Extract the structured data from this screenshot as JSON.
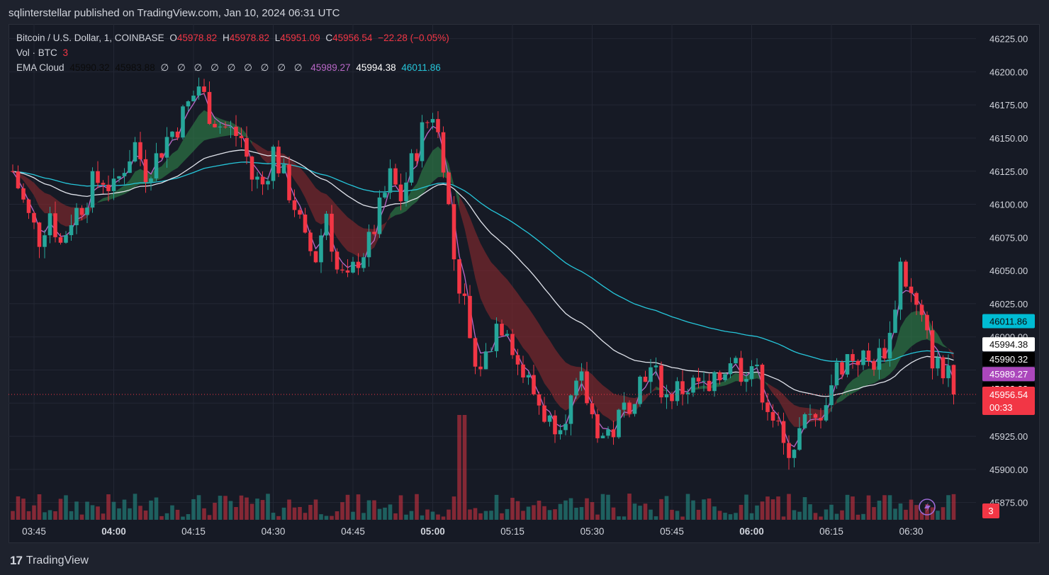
{
  "publish_line": "sqlinterstellar published on TradingView.com, Jan 10, 2024 06:31 UTC",
  "legend": {
    "symbol": "Bitcoin / U.S. Dollar, 1, COINBASE",
    "o_label": "O",
    "o_value": "45978.82",
    "h_label": "H",
    "h_value": "45978.82",
    "l_label": "L",
    "l_value": "45951.09",
    "c_label": "C",
    "c_value": "45956.54",
    "change": "−22.28 (−0.05%)",
    "vol_label": "Vol · BTC",
    "vol_value": "3",
    "ema_label": "EMA Cloud",
    "ema_v1": "45990.32",
    "ema_v2": "45983.88",
    "ema_empty": [
      "∅",
      "∅",
      "∅",
      "∅",
      "∅",
      "∅",
      "∅",
      "∅",
      "∅"
    ],
    "ema_v3": "45989.27",
    "ema_v4": "45994.38",
    "ema_v5": "46011.86"
  },
  "brand": "TradingView",
  "colors": {
    "up": "#26a69a",
    "down": "#f23645",
    "white_ema": "#e0e3eb",
    "cyan_ema": "#26c6da",
    "violet_ema": "#ba68c8"
  },
  "chart_data": {
    "type": "candlestick",
    "title": "Bitcoin / U.S. Dollar, 1, COINBASE",
    "interval": "1 minute",
    "y_range": [
      45862,
      46236
    ],
    "y_ticks": [
      "46225.00",
      "46200.00",
      "46175.00",
      "46150.00",
      "46125.00",
      "46100.00",
      "46075.00",
      "46050.00",
      "46025.00",
      "46000.00",
      "45975.00",
      "45950.00",
      "45925.00",
      "45900.00",
      "45875.00"
    ],
    "y_tick_values": [
      46225,
      46200,
      46175,
      46150,
      46125,
      46100,
      46075,
      46050,
      46025,
      46000,
      45975,
      45950,
      45925,
      45900,
      45875
    ],
    "x_ticks": [
      {
        "label": "03:45",
        "minute": 0,
        "bold": false
      },
      {
        "label": "04:00",
        "minute": 15,
        "bold": true
      },
      {
        "label": "04:15",
        "minute": 30,
        "bold": false
      },
      {
        "label": "04:30",
        "minute": 45,
        "bold": false
      },
      {
        "label": "04:45",
        "minute": 60,
        "bold": false
      },
      {
        "label": "05:00",
        "minute": 75,
        "bold": true
      },
      {
        "label": "05:15",
        "minute": 90,
        "bold": false
      },
      {
        "label": "05:30",
        "minute": 105,
        "bold": false
      },
      {
        "label": "05:45",
        "minute": 120,
        "bold": false
      },
      {
        "label": "06:00",
        "minute": 135,
        "bold": true
      },
      {
        "label": "06:15",
        "minute": 150,
        "bold": false
      },
      {
        "label": "06:30",
        "minute": 165,
        "bold": false
      }
    ],
    "start_minute": -4,
    "price_anchors": [
      [
        -4,
        46125
      ],
      [
        -1,
        46090
      ],
      [
        1,
        46075
      ],
      [
        3,
        46095
      ],
      [
        5,
        46070
      ],
      [
        7,
        46090
      ],
      [
        9,
        46100
      ],
      [
        11,
        46115
      ],
      [
        13,
        46120
      ],
      [
        15,
        46110
      ],
      [
        17,
        46130
      ],
      [
        19,
        46145
      ],
      [
        21,
        46125
      ],
      [
        23,
        46135
      ],
      [
        25,
        46150
      ],
      [
        27,
        46160
      ],
      [
        29,
        46175
      ],
      [
        31,
        46190
      ],
      [
        33,
        46170
      ],
      [
        35,
        46160
      ],
      [
        37,
        46155
      ],
      [
        39,
        46150
      ],
      [
        41,
        46120
      ],
      [
        43,
        46115
      ],
      [
        45,
        46140
      ],
      [
        47,
        46120
      ],
      [
        49,
        46100
      ],
      [
        51,
        46070
      ],
      [
        53,
        46060
      ],
      [
        55,
        46095
      ],
      [
        57,
        46050
      ],
      [
        59,
        46040
      ],
      [
        61,
        46060
      ],
      [
        63,
        46070
      ],
      [
        65,
        46095
      ],
      [
        67,
        46120
      ],
      [
        69,
        46105
      ],
      [
        71,
        46130
      ],
      [
        73,
        46155
      ],
      [
        75,
        46170
      ],
      [
        77,
        46135
      ],
      [
        79,
        46060
      ],
      [
        81,
        46020
      ],
      [
        83,
        45975
      ],
      [
        85,
        45985
      ],
      [
        87,
        46010
      ],
      [
        89,
        46010
      ],
      [
        91,
        45980
      ],
      [
        93,
        45965
      ],
      [
        95,
        45950
      ],
      [
        97,
        45935
      ],
      [
        99,
        45940
      ],
      [
        101,
        45950
      ],
      [
        103,
        45965
      ],
      [
        105,
        45940
      ],
      [
        107,
        45925
      ],
      [
        109,
        45930
      ],
      [
        111,
        45945
      ],
      [
        113,
        45960
      ],
      [
        115,
        45975
      ],
      [
        117,
        45970
      ],
      [
        119,
        45955
      ],
      [
        121,
        45960
      ],
      [
        123,
        45962
      ],
      [
        125,
        45965
      ],
      [
        127,
        45955
      ],
      [
        129,
        45970
      ],
      [
        131,
        45985
      ],
      [
        133,
        45975
      ],
      [
        135,
        45980
      ],
      [
        137,
        45960
      ],
      [
        139,
        45940
      ],
      [
        141,
        45915
      ],
      [
        143,
        45920
      ],
      [
        145,
        45935
      ],
      [
        147,
        45935
      ],
      [
        149,
        45955
      ],
      [
        151,
        45975
      ],
      [
        153,
        45985
      ],
      [
        155,
        45985
      ],
      [
        157,
        45980
      ],
      [
        159,
        45985
      ],
      [
        161,
        46000
      ],
      [
        163,
        46055
      ],
      [
        165,
        46030
      ],
      [
        167,
        46010
      ],
      [
        169,
        45985
      ],
      [
        171,
        45970
      ],
      [
        172,
        45979
      ],
      [
        173,
        45956.54
      ]
    ],
    "series": [
      {
        "name": "EMA 1 (violet)",
        "color": "#ba68c8",
        "last": 45989.27
      },
      {
        "name": "EMA 2 (white)",
        "color": "#e0e3eb",
        "last": 45994.38
      },
      {
        "name": "EMA 3 (cyan)",
        "color": "#26c6da",
        "last": 46011.86
      },
      {
        "name": "EMA cloud fast",
        "last": 45990.32
      },
      {
        "name": "EMA cloud slow",
        "last": 45983.88
      }
    ],
    "last_price": "45956.54",
    "countdown": "00:33",
    "volume_last": "3"
  }
}
